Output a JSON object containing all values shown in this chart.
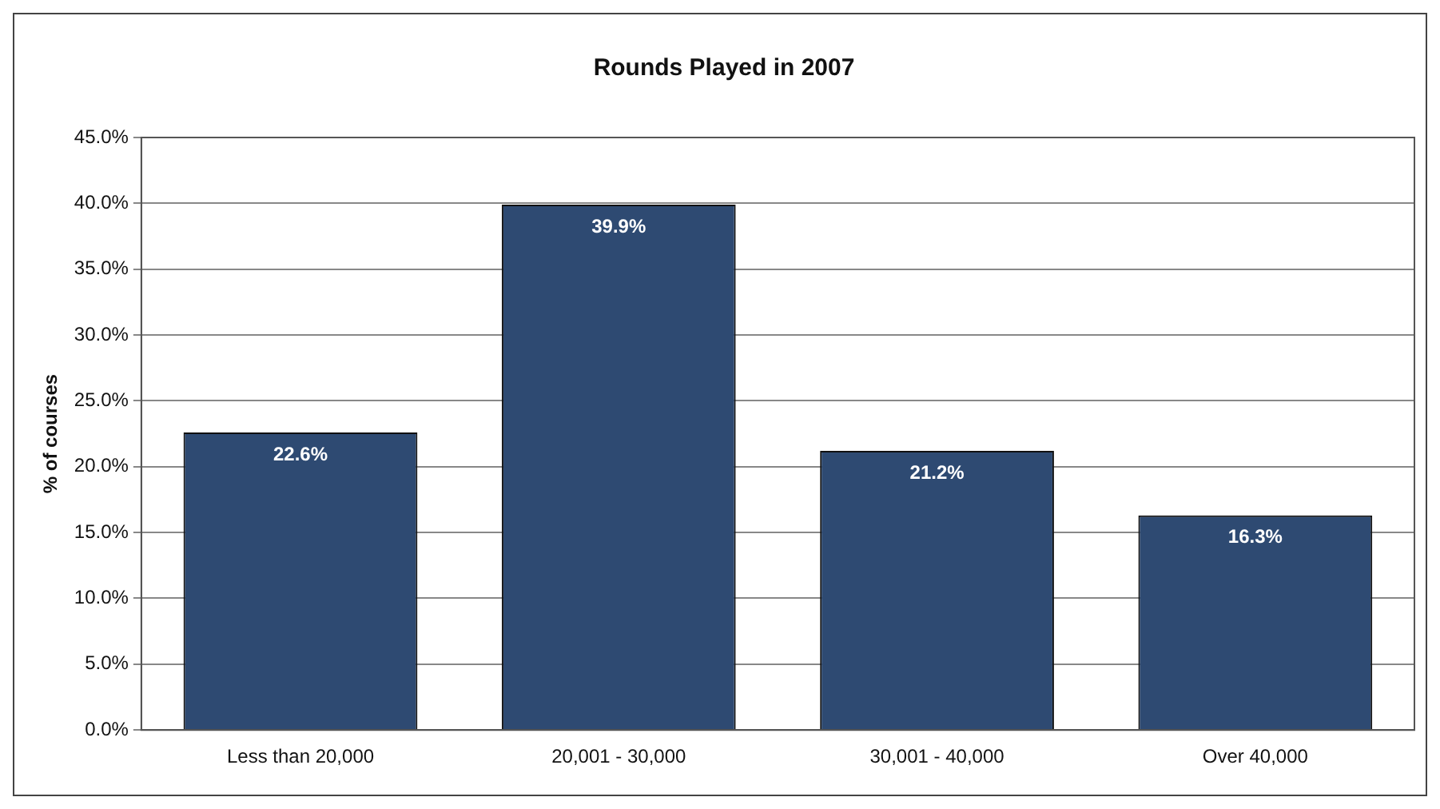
{
  "chart_data": {
    "type": "bar",
    "title": "Rounds Played in 2007",
    "ylabel": "% of courses",
    "categories": [
      "Less than 20,000",
      "20,001 - 30,000",
      "30,001 - 40,000",
      "Over 40,000"
    ],
    "values": [
      22.6,
      39.9,
      21.2,
      16.3
    ],
    "value_labels": [
      "22.6%",
      "39.9%",
      "21.2%",
      "16.3%"
    ],
    "color": "#2e4a72",
    "ylim": [
      0,
      45
    ],
    "yticks": [
      {
        "value": 0,
        "label": "0.0%"
      },
      {
        "value": 5,
        "label": "5.0%"
      },
      {
        "value": 10,
        "label": "10.0%"
      },
      {
        "value": 15,
        "label": "15.0%"
      },
      {
        "value": 20,
        "label": "20.0%"
      },
      {
        "value": 25,
        "label": "25.0%"
      },
      {
        "value": 30,
        "label": "30.0%"
      },
      {
        "value": 35,
        "label": "35.0%"
      },
      {
        "value": 40,
        "label": "40.0%"
      },
      {
        "value": 45,
        "label": "45.0%"
      }
    ],
    "grid": "y",
    "legend": false
  }
}
